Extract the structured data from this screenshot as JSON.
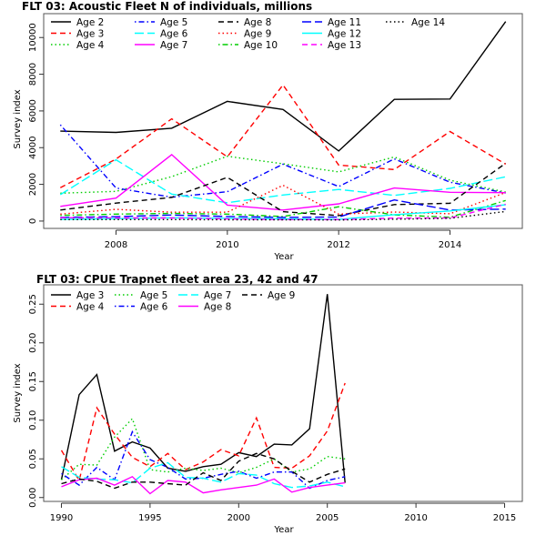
{
  "chart_data": [
    {
      "type": "line",
      "title": "FLT 03: Acoustic Fleet   N of individuals, millions",
      "xlabel": "Year",
      "ylabel": "Survey index",
      "xlim": [
        2006.7,
        2015.3
      ],
      "ylim": [
        -400,
        11300
      ],
      "xticks": [
        2008,
        2010,
        2012,
        2014
      ],
      "yticks": [
        0,
        2000,
        4000,
        6000,
        8000,
        10000
      ],
      "legend_position": "top-left",
      "legend_columns": 5,
      "x": [
        2007,
        2008,
        2009,
        2010,
        2011,
        2012,
        2013,
        2014,
        2015
      ],
      "series": [
        {
          "name": "Age 2",
          "color": "#000000",
          "dash": "solid",
          "values": [
            4900,
            4830,
            5060,
            6520,
            6080,
            3820,
            6630,
            6650,
            10870
          ]
        },
        {
          "name": "Age 3",
          "color": "#ff0000",
          "dash": "dashed",
          "values": [
            1820,
            3380,
            5570,
            3500,
            7420,
            3050,
            2810,
            4880,
            3100
          ]
        },
        {
          "name": "Age 4",
          "color": "#00cd00",
          "dash": "dotted",
          "values": [
            1520,
            1620,
            2420,
            3530,
            3120,
            2680,
            3490,
            2230,
            1580
          ]
        },
        {
          "name": "Age 5",
          "color": "#0000ff",
          "dash": "dotdash",
          "values": [
            5240,
            1800,
            1300,
            1600,
            3100,
            1880,
            3390,
            2120,
            1530
          ]
        },
        {
          "name": "Age 6",
          "color": "#00ffff",
          "dash": "longdash",
          "values": [
            1440,
            3340,
            1470,
            1000,
            1420,
            1720,
            1400,
            1780,
            2410
          ]
        },
        {
          "name": "Age 7",
          "color": "#ff00ff",
          "dash": "solid",
          "values": [
            800,
            1250,
            3620,
            870,
            600,
            940,
            1800,
            1570,
            1550
          ]
        },
        {
          "name": "Age 8",
          "color": "#000000",
          "dash": "dashed",
          "values": [
            600,
            980,
            1290,
            2380,
            510,
            300,
            900,
            970,
            3150
          ]
        },
        {
          "name": "Age 9",
          "color": "#ff0000",
          "dash": "dotted",
          "values": [
            380,
            640,
            480,
            480,
            1950,
            380,
            490,
            400,
            1560
          ]
        },
        {
          "name": "Age 10",
          "color": "#00cd00",
          "dash": "dotdash",
          "values": [
            310,
            380,
            420,
            380,
            250,
            780,
            340,
            210,
            1120
          ]
        },
        {
          "name": "Age 11",
          "color": "#0000ff",
          "dash": "longdash",
          "values": [
            200,
            240,
            330,
            250,
            200,
            220,
            1150,
            600,
            650
          ]
        },
        {
          "name": "Age 12",
          "color": "#00ffff",
          "dash": "solid",
          "values": [
            90,
            130,
            180,
            150,
            120,
            90,
            350,
            550,
            890
          ]
        },
        {
          "name": "Age 13",
          "color": "#ff00ff",
          "dash": "dashed",
          "values": [
            180,
            170,
            170,
            120,
            80,
            80,
            160,
            170,
            920
          ]
        },
        {
          "name": "Age 14",
          "color": "#000000",
          "dash": "dotted",
          "values": [
            80,
            80,
            80,
            70,
            70,
            60,
            100,
            150,
            520
          ]
        }
      ]
    },
    {
      "type": "line",
      "title": "FLT 03: CPUE Trapnet fleet area 23, 42 and 47",
      "xlabel": "Year",
      "ylabel": "Survey index",
      "xlim": [
        1989,
        2016
      ],
      "ylim": [
        -0.005,
        0.275
      ],
      "xticks": [
        1990,
        1995,
        2000,
        2005,
        2010,
        2015
      ],
      "yticks": [
        0.0,
        0.05,
        0.1,
        0.15,
        0.2,
        0.25
      ],
      "legend_position": "top-left",
      "legend_columns": 4,
      "x": [
        1990,
        1991,
        1992,
        1993,
        1994,
        1995,
        1996,
        1997,
        1998,
        1999,
        2000,
        2001,
        2002,
        2003,
        2004,
        2005,
        2006
      ],
      "series": [
        {
          "name": "Age 3",
          "color": "#000000",
          "dash": "solid",
          "values": [
            0.023,
            0.133,
            0.159,
            0.06,
            0.072,
            0.064,
            0.038,
            0.034,
            0.04,
            0.043,
            0.058,
            0.053,
            0.069,
            0.068,
            0.089,
            0.263,
            0.019
          ]
        },
        {
          "name": "Age 4",
          "color": "#ff0000",
          "dash": "dashed",
          "values": [
            0.061,
            0.022,
            0.116,
            0.082,
            0.052,
            0.04,
            0.057,
            0.036,
            0.046,
            0.062,
            0.054,
            0.103,
            0.039,
            0.038,
            0.054,
            0.086,
            0.148
          ]
        },
        {
          "name": "Age 5",
          "color": "#00cd00",
          "dash": "dotted",
          "values": [
            0.023,
            0.043,
            0.042,
            0.078,
            0.102,
            0.036,
            0.033,
            0.038,
            0.035,
            0.038,
            0.032,
            0.039,
            0.05,
            0.033,
            0.037,
            0.053,
            0.05
          ]
        },
        {
          "name": "Age 6",
          "color": "#0000ff",
          "dash": "dotdash",
          "values": [
            0.031,
            0.016,
            0.039,
            0.023,
            0.085,
            0.049,
            0.039,
            0.024,
            0.025,
            0.03,
            0.034,
            0.025,
            0.033,
            0.033,
            0.012,
            0.022,
            0.027
          ]
        },
        {
          "name": "Age 7",
          "color": "#00ffff",
          "dash": "longdash",
          "values": [
            0.04,
            0.026,
            0.024,
            0.023,
            0.019,
            0.038,
            0.045,
            0.026,
            0.025,
            0.02,
            0.031,
            0.029,
            0.018,
            0.013,
            0.015,
            0.02,
            0.014
          ]
        },
        {
          "name": "Age 8",
          "color": "#ff00ff",
          "dash": "solid",
          "values": [
            0.014,
            0.023,
            0.025,
            0.016,
            0.027,
            0.005,
            0.022,
            0.02,
            0.006,
            0.01,
            0.013,
            0.016,
            0.024,
            0.007,
            0.013,
            0.016,
            0.019
          ]
        },
        {
          "name": "Age 9",
          "color": "#000000",
          "dash": "dashed",
          "values": [
            0.018,
            0.024,
            0.021,
            0.012,
            0.02,
            0.02,
            0.018,
            0.016,
            0.032,
            0.022,
            0.047,
            0.057,
            0.05,
            0.034,
            0.02,
            0.03,
            0.037
          ]
        }
      ]
    }
  ]
}
